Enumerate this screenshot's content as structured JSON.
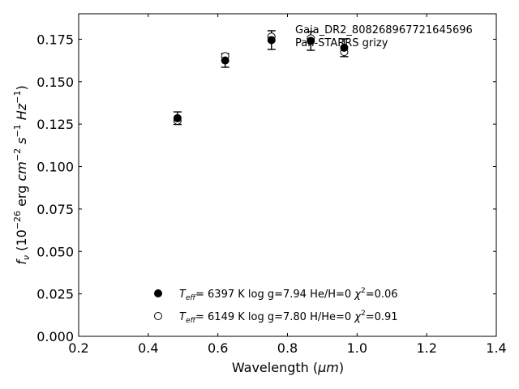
{
  "chart_data": {
    "type": "scatter",
    "xlabel_main": "Wavelength (",
    "xlabel_unit": "μm",
    "xlabel_close": ")",
    "ylabel_prefix": "f",
    "ylabel_sub": "ν",
    "ylabel_unit_a": " (10",
    "ylabel_exp_a": "−26",
    "ylabel_unit_b": " erg ",
    "ylabel_cm": "cm",
    "ylabel_exp_cm": "−2",
    "ylabel_s": " s",
    "ylabel_exp_s": "−1",
    "ylabel_hz": " Hz",
    "ylabel_exp_hz": "−1",
    "ylabel_close": ")",
    "xlim": [
      0.2,
      1.4
    ],
    "ylim": [
      0.0,
      0.19
    ],
    "xticks": [
      "0.2",
      "0.4",
      "0.6",
      "0.8",
      "1.0",
      "1.2",
      "1.4"
    ],
    "yticks": [
      "0.000",
      "0.025",
      "0.050",
      "0.075",
      "0.100",
      "0.125",
      "0.150",
      "0.175"
    ],
    "annotation_lines": [
      "Gaia_DR2_808268967721645696",
      "Pan-STARRS grizy"
    ],
    "series": [
      {
        "marker": "filled",
        "x": [
          0.484,
          0.621,
          0.754,
          0.867,
          0.963
        ],
        "y": [
          0.1285,
          0.1625,
          0.1745,
          0.174,
          0.17
        ],
        "yerr": [
          0.0037,
          0.004,
          0.0055,
          0.0055,
          0.0052
        ],
        "legend_teff": "T",
        "legend_teff_sub": "eff",
        "legend_rest": "=  6397 K  log g=7.94  He/H=0  ",
        "legend_chi": "χ",
        "legend_chi_exp": "2",
        "legend_chi_val": "=0.06"
      },
      {
        "marker": "open",
        "x": [
          0.484,
          0.621,
          0.754,
          0.867,
          0.963
        ],
        "y": [
          0.127,
          0.165,
          0.1765,
          0.1755,
          0.1675
        ],
        "legend_teff": "T",
        "legend_teff_sub": "eff",
        "legend_rest": "=  6149 K  log g=7.80  H/He=0  ",
        "legend_chi": "χ",
        "legend_chi_exp": "2",
        "legend_chi_val": "=0.91"
      }
    ],
    "legend_placement": "lower-center",
    "grid": false
  }
}
